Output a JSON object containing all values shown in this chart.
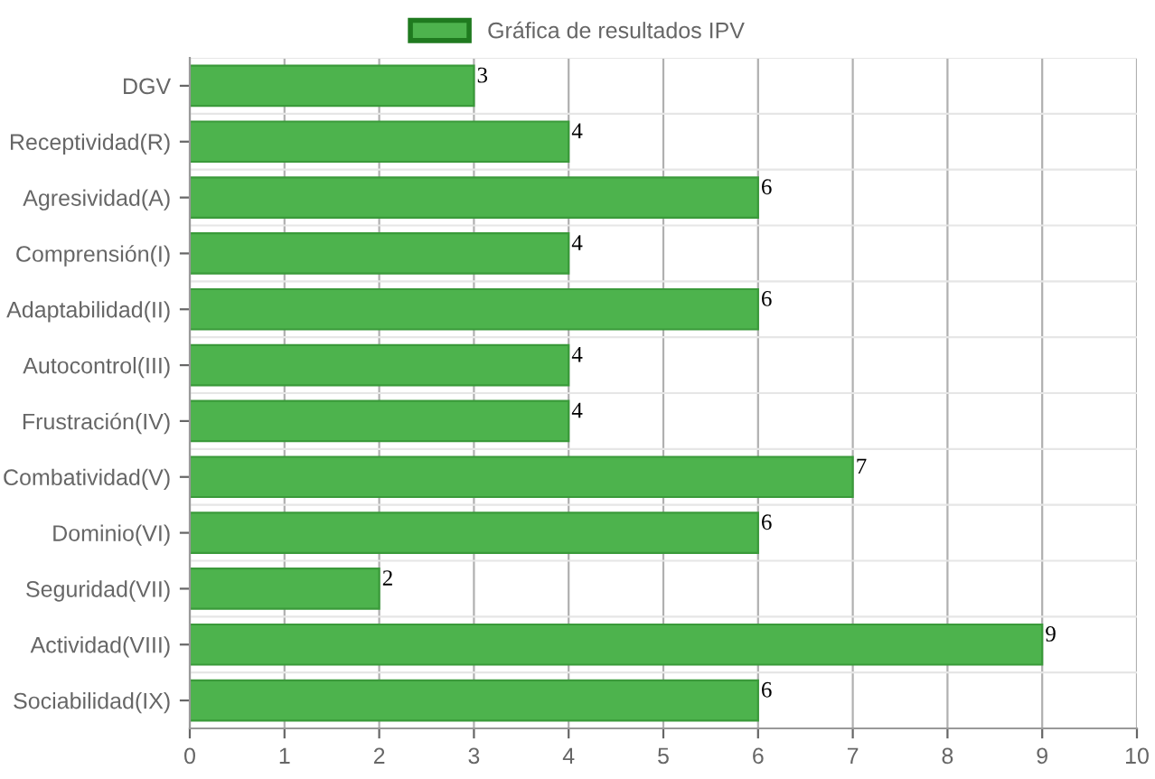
{
  "chart_data": {
    "type": "bar",
    "orientation": "horizontal",
    "categories": [
      "DGV",
      "Receptividad(R)",
      "Agresividad(A)",
      "Comprensión(I)",
      "Adaptabilidad(II)",
      "Autocontrol(III)",
      "Frustración(IV)",
      "Combatividad(V)",
      "Dominio(VI)",
      "Seguridad(VII)",
      "Actividad(VIII)",
      "Sociabilidad(IX)"
    ],
    "series": [
      {
        "name": "Gráfica de resultados IPV",
        "color": "#4db34d",
        "values": [
          3,
          4,
          6,
          4,
          6,
          4,
          4,
          7,
          6,
          2,
          9,
          6
        ]
      }
    ],
    "xlim": [
      0,
      10
    ],
    "xticks": [
      0,
      1,
      2,
      3,
      4,
      5,
      6,
      7,
      8,
      9,
      10
    ],
    "grid": true,
    "legend": "top",
    "data_labels": true
  }
}
